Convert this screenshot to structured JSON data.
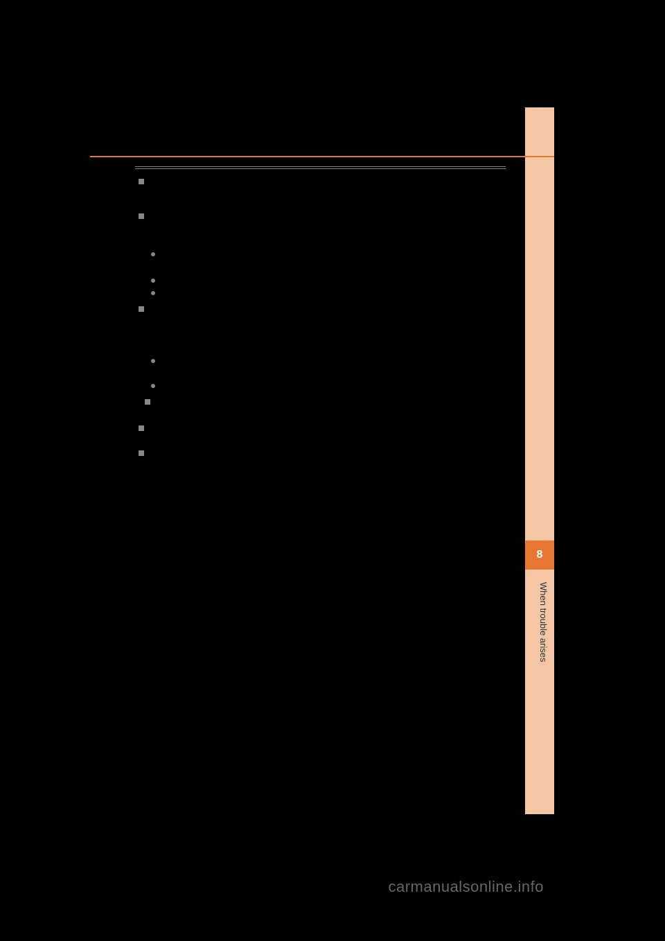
{
  "sidebar": {
    "chapter_number": "8",
    "chapter_title": "When trouble arises",
    "background_color": "#f5c6a5",
    "number_background_color": "#e67733"
  },
  "watermark": "carmanualsonline.info",
  "accent_color": "#e67733",
  "page_background": "#000000"
}
